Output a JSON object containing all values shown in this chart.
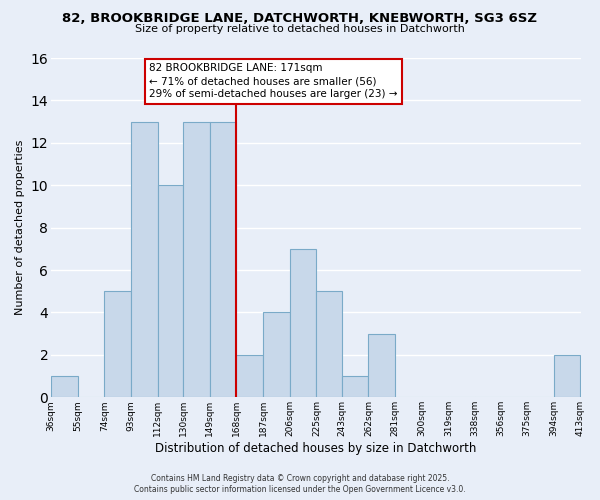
{
  "title": "82, BROOKBRIDGE LANE, DATCHWORTH, KNEBWORTH, SG3 6SZ",
  "subtitle": "Size of property relative to detached houses in Datchworth",
  "xlabel": "Distribution of detached houses by size in Datchworth",
  "ylabel": "Number of detached properties",
  "bar_color": "#c8d8ea",
  "bar_edge_color": "#7aaac8",
  "background_color": "#e8eef8",
  "grid_color": "#ffffff",
  "vline_x": 168,
  "vline_color": "#cc0000",
  "bins": [
    36,
    55,
    74,
    93,
    112,
    130,
    149,
    168,
    187,
    206,
    225,
    243,
    262,
    281,
    300,
    319,
    338,
    356,
    375,
    394,
    413
  ],
  "counts": [
    1,
    0,
    5,
    13,
    10,
    13,
    13,
    2,
    4,
    7,
    5,
    1,
    3,
    0,
    0,
    0,
    0,
    0,
    0,
    2
  ],
  "ylim": [
    0,
    16
  ],
  "yticks": [
    0,
    2,
    4,
    6,
    8,
    10,
    12,
    14,
    16
  ],
  "annotation_title": "82 BROOKBRIDGE LANE: 171sqm",
  "annotation_line1": "← 71% of detached houses are smaller (56)",
  "annotation_line2": "29% of semi-detached houses are larger (23) →",
  "footer_line1": "Contains HM Land Registry data © Crown copyright and database right 2025.",
  "footer_line2": "Contains public sector information licensed under the Open Government Licence v3.0."
}
